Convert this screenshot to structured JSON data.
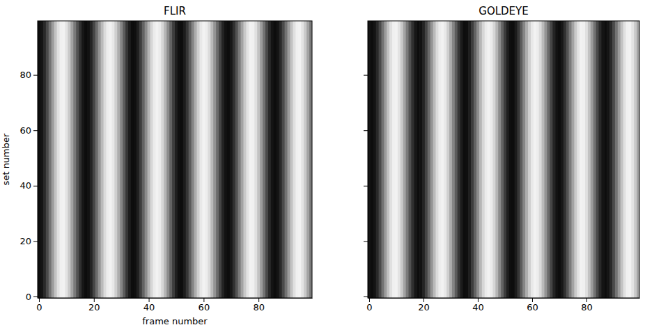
{
  "chart_data": [
    {
      "type": "heatmap",
      "title": "FLIR",
      "x_label": "frame number",
      "y_label": "set number",
      "xlim": [
        -0.5,
        99.5
      ],
      "ylim": [
        -0.5,
        99.5
      ],
      "xticks": [
        0,
        20,
        40,
        60,
        80
      ],
      "yticks": [
        0,
        20,
        40,
        60,
        80
      ],
      "color_range": [
        0,
        1
      ],
      "x": [
        0,
        1,
        2,
        3,
        4,
        5,
        6,
        7,
        8,
        9,
        10,
        11,
        12,
        13,
        14,
        15,
        16,
        17,
        18,
        19,
        20,
        21,
        22,
        23,
        24,
        25,
        26,
        27,
        28,
        29,
        30,
        31,
        32,
        33,
        34,
        35,
        36,
        37,
        38,
        39,
        40,
        41,
        42,
        43,
        44,
        45,
        46,
        47,
        48,
        49,
        50,
        51,
        52,
        53,
        54,
        55,
        56,
        57,
        58,
        59,
        60,
        61,
        62,
        63,
        64,
        65,
        66,
        67,
        68,
        69,
        70,
        71,
        72,
        73,
        74,
        75,
        76,
        77,
        78,
        79,
        80,
        81,
        82,
        83,
        84,
        85,
        86,
        87,
        88,
        89,
        90,
        91,
        92,
        93,
        94,
        95,
        96,
        97,
        98,
        99
      ],
      "values": [
        0.05,
        0.08,
        0.16,
        0.29,
        0.45,
        0.61,
        0.76,
        0.88,
        0.94,
        0.95,
        0.89,
        0.79,
        0.64,
        0.48,
        0.32,
        0.19,
        0.09,
        0.05,
        0.07,
        0.14,
        0.27,
        0.42,
        0.58,
        0.73,
        0.86,
        0.93,
        0.95,
        0.91,
        0.81,
        0.68,
        0.52,
        0.36,
        0.21,
        0.11,
        0.05,
        0.06,
        0.12,
        0.24,
        0.39,
        0.55,
        0.71,
        0.84,
        0.92,
        0.95,
        0.92,
        0.84,
        0.71,
        0.55,
        0.39,
        0.24,
        0.12,
        0.06,
        0.05,
        0.11,
        0.21,
        0.36,
        0.52,
        0.68,
        0.81,
        0.91,
        0.95,
        0.93,
        0.86,
        0.73,
        0.58,
        0.42,
        0.27,
        0.14,
        0.07,
        0.05,
        0.09,
        0.19,
        0.32,
        0.48,
        0.64,
        0.79,
        0.89,
        0.95,
        0.94,
        0.88,
        0.76,
        0.61,
        0.45,
        0.29,
        0.16,
        0.08,
        0.05,
        0.08,
        0.16,
        0.29,
        0.45,
        0.61,
        0.76,
        0.88,
        0.94,
        0.95,
        0.89,
        0.79,
        0.64,
        0.48
      ]
    },
    {
      "type": "heatmap",
      "title": "GOLDEYE",
      "tick_labels": "x",
      "xlim": [
        -0.5,
        99.5
      ],
      "ylim": [
        -0.5,
        99.5
      ],
      "xticks": [
        0,
        20,
        40,
        60,
        80
      ],
      "yticks": [
        0,
        20,
        40,
        60,
        80
      ],
      "color_range": [
        0,
        1
      ],
      "x": [
        0,
        1,
        2,
        3,
        4,
        5,
        6,
        7,
        8,
        9,
        10,
        11,
        12,
        13,
        14,
        15,
        16,
        17,
        18,
        19,
        20,
        21,
        22,
        23,
        24,
        25,
        26,
        27,
        28,
        29,
        30,
        31,
        32,
        33,
        34,
        35,
        36,
        37,
        38,
        39,
        40,
        41,
        42,
        43,
        44,
        45,
        46,
        47,
        48,
        49,
        50,
        51,
        52,
        53,
        54,
        55,
        56,
        57,
        58,
        59,
        60,
        61,
        62,
        63,
        64,
        65,
        66,
        67,
        68,
        69,
        70,
        71,
        72,
        73,
        74,
        75,
        76,
        77,
        78,
        79,
        80,
        81,
        82,
        83,
        84,
        85,
        86,
        87,
        88,
        89,
        90,
        91,
        92,
        93,
        94,
        95,
        96,
        97,
        98,
        99
      ],
      "values": [
        0.08,
        0.05,
        0.08,
        0.16,
        0.29,
        0.45,
        0.61,
        0.76,
        0.88,
        0.94,
        0.95,
        0.89,
        0.79,
        0.64,
        0.48,
        0.32,
        0.19,
        0.09,
        0.05,
        0.07,
        0.14,
        0.27,
        0.42,
        0.58,
        0.73,
        0.86,
        0.93,
        0.95,
        0.91,
        0.81,
        0.68,
        0.52,
        0.36,
        0.21,
        0.11,
        0.05,
        0.06,
        0.12,
        0.24,
        0.39,
        0.55,
        0.71,
        0.84,
        0.92,
        0.95,
        0.92,
        0.84,
        0.71,
        0.55,
        0.39,
        0.24,
        0.12,
        0.06,
        0.05,
        0.11,
        0.21,
        0.36,
        0.52,
        0.68,
        0.81,
        0.91,
        0.95,
        0.93,
        0.86,
        0.73,
        0.58,
        0.42,
        0.27,
        0.14,
        0.07,
        0.05,
        0.09,
        0.19,
        0.32,
        0.48,
        0.64,
        0.79,
        0.89,
        0.95,
        0.94,
        0.88,
        0.76,
        0.61,
        0.45,
        0.29,
        0.16,
        0.08,
        0.05,
        0.08,
        0.16,
        0.29,
        0.45,
        0.61,
        0.76,
        0.88,
        0.94,
        0.95,
        0.89,
        0.79,
        0.64
      ]
    }
  ]
}
